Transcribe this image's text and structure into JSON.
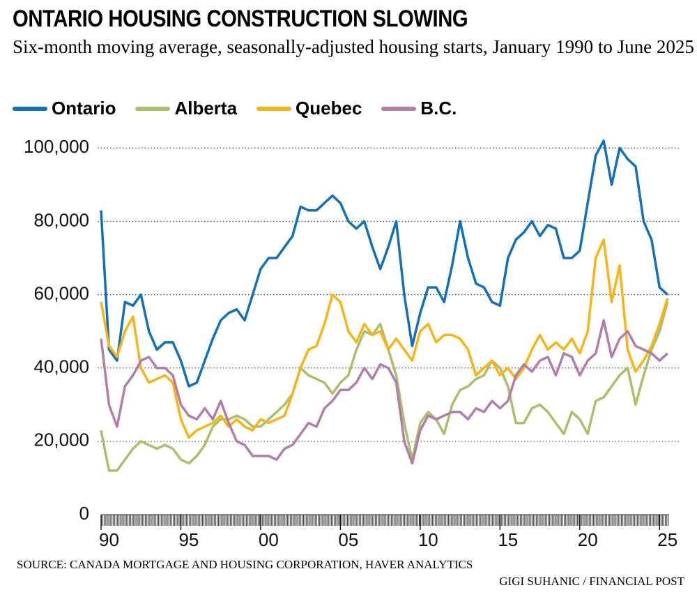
{
  "chart_data": {
    "type": "line",
    "title": "ONTARIO HOUSING CONSTRUCTION SLOWING",
    "subtitle": "Six-month moving average, seasonally-adjusted housing starts, January 1990 to June 2025",
    "source": "SOURCE: CANADA MORTGAGE AND HOUSING CORPORATION, HAVER ANALYTICS",
    "credit": "GIGI SUHANIC / FINANCIAL POST",
    "x": [
      1990,
      1990.5,
      1991,
      1991.5,
      1992,
      1992.5,
      1993,
      1993.5,
      1994,
      1994.5,
      1995,
      1995.5,
      1996,
      1996.5,
      1997,
      1997.5,
      1998,
      1998.5,
      1999,
      1999.5,
      2000,
      2000.5,
      2001,
      2001.5,
      2002,
      2002.5,
      2003,
      2003.5,
      2004,
      2004.5,
      2005,
      2005.5,
      2006,
      2006.5,
      2007,
      2007.5,
      2008,
      2008.5,
      2009,
      2009.5,
      2010,
      2010.5,
      2011,
      2011.5,
      2012,
      2012.5,
      2013,
      2013.5,
      2014,
      2014.5,
      2015,
      2015.5,
      2016,
      2016.5,
      2017,
      2017.5,
      2018,
      2018.5,
      2019,
      2019.5,
      2020,
      2020.5,
      2021,
      2021.5,
      2022,
      2022.5,
      2023,
      2023.5,
      2024,
      2024.5,
      2025,
      2025.5
    ],
    "series": [
      {
        "name": "Ontario",
        "color": "#1170b8",
        "values": [
          83000,
          45000,
          42000,
          58000,
          57000,
          60000,
          50000,
          45000,
          47000,
          47000,
          42000,
          35000,
          36000,
          42000,
          48000,
          53000,
          55000,
          56000,
          53000,
          60000,
          67000,
          70000,
          70000,
          73000,
          76000,
          84000,
          83000,
          83000,
          85000,
          87000,
          85000,
          80000,
          78000,
          80000,
          73000,
          67000,
          73000,
          80000,
          60000,
          46000,
          55000,
          62000,
          62000,
          58000,
          68000,
          80000,
          70000,
          63000,
          62000,
          58000,
          57000,
          70000,
          75000,
          77000,
          80000,
          76000,
          79000,
          78000,
          70000,
          70000,
          72000,
          85000,
          98000,
          102000,
          90000,
          100000,
          97000,
          95000,
          80000,
          75000,
          62000,
          60000
        ]
      },
      {
        "name": "Alberta",
        "color": "#a9bf6c",
        "values": [
          23000,
          12000,
          12000,
          15000,
          18000,
          20000,
          19000,
          18000,
          19000,
          18000,
          15000,
          14000,
          16000,
          19000,
          24000,
          26000,
          26000,
          27000,
          26000,
          24000,
          24000,
          26000,
          28000,
          30000,
          33000,
          40000,
          38000,
          37000,
          36000,
          33000,
          36000,
          38000,
          45000,
          50000,
          49000,
          52000,
          45000,
          38000,
          25000,
          15000,
          25000,
          28000,
          26000,
          22000,
          30000,
          34000,
          35000,
          37000,
          38000,
          42000,
          40000,
          35000,
          25000,
          25000,
          29000,
          30000,
          28000,
          25000,
          22000,
          28000,
          26000,
          22000,
          31000,
          32000,
          35000,
          38000,
          40000,
          30000,
          38000,
          45000,
          50000,
          58000
        ]
      },
      {
        "name": "Quebec",
        "color": "#f7b416",
        "values": [
          58000,
          46000,
          43000,
          50000,
          54000,
          40000,
          36000,
          37000,
          38000,
          36000,
          26000,
          21000,
          23000,
          24000,
          25000,
          27000,
          24000,
          26000,
          24000,
          23000,
          26000,
          25000,
          26000,
          27000,
          33000,
          40000,
          45000,
          46000,
          52000,
          60000,
          58000,
          50000,
          47000,
          52000,
          49000,
          50000,
          45000,
          48000,
          45000,
          42000,
          50000,
          52000,
          47000,
          49000,
          49000,
          48000,
          45000,
          38000,
          40000,
          42000,
          38000,
          40000,
          37000,
          40000,
          45000,
          49000,
          45000,
          47000,
          45000,
          48000,
          44000,
          50000,
          70000,
          75000,
          58000,
          68000,
          45000,
          39000,
          42000,
          46000,
          52000,
          59000
        ]
      },
      {
        "name": "B.C.",
        "color": "#b27ea9",
        "values": [
          48000,
          30000,
          24000,
          35000,
          38000,
          42000,
          43000,
          40000,
          40000,
          38000,
          30000,
          27000,
          26000,
          29000,
          26000,
          31000,
          25000,
          20000,
          19000,
          16000,
          16000,
          16000,
          15000,
          18000,
          19000,
          22000,
          25000,
          24000,
          29000,
          31000,
          34000,
          34000,
          36000,
          40000,
          37000,
          41000,
          40000,
          36000,
          20000,
          14000,
          23000,
          27000,
          26000,
          27000,
          28000,
          28000,
          26000,
          29000,
          28000,
          31000,
          29000,
          31000,
          38000,
          41000,
          39000,
          42000,
          43000,
          38000,
          44000,
          43000,
          38000,
          42000,
          44000,
          53000,
          43000,
          48000,
          50000,
          46000,
          45000,
          44000,
          42000,
          44000
        ]
      }
    ],
    "xlim": [
      1990,
      2025.6
    ],
    "xticks": [
      {
        "value": 1990,
        "label": "90"
      },
      {
        "value": 1995,
        "label": "95"
      },
      {
        "value": 2000,
        "label": "00"
      },
      {
        "value": 2005,
        "label": "05"
      },
      {
        "value": 2010,
        "label": "10"
      },
      {
        "value": 2015,
        "label": "15"
      },
      {
        "value": 2020,
        "label": "20"
      },
      {
        "value": 2025,
        "label": "25"
      }
    ],
    "ylim": [
      0,
      105000
    ],
    "yticks": [
      0,
      {
        "value": 20000,
        "label": "20,000"
      },
      {
        "value": 40000,
        "label": "40,000"
      },
      {
        "value": 60000,
        "label": "60,000"
      },
      {
        "value": 80000,
        "label": "80,000"
      },
      {
        "value": 100000,
        "label": "100,000"
      }
    ],
    "grid": true
  }
}
